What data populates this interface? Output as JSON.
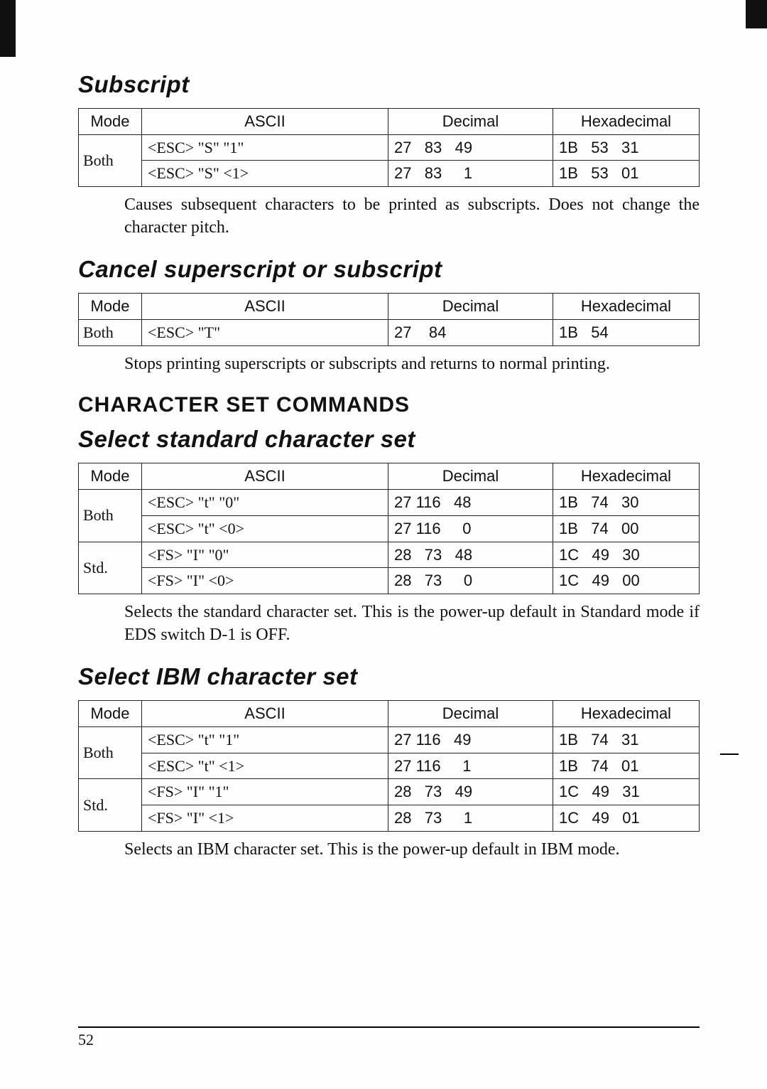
{
  "subscript": {
    "heading": "Subscript",
    "columns": [
      "Mode",
      "ASCII",
      "Decimal",
      "Hexadecimal"
    ],
    "rows": [
      {
        "mode": "Both",
        "modeRowspan": 2,
        "ascii": "<ESC>   \"S\"   \"1\"",
        "dec": "27   83   49",
        "hex": "1B   53   31"
      },
      {
        "ascii": "<ESC>   \"S\"   <1>",
        "dec": "27   83     1",
        "hex": "1B   53   01"
      }
    ],
    "desc": "Causes subsequent characters to be printed as subscripts. Does not change the character pitch."
  },
  "cancel": {
    "heading": "Cancel superscript or subscript",
    "columns": [
      "Mode",
      "ASCII",
      "Decimal",
      "Hexadecimal"
    ],
    "rows": [
      {
        "mode": "Both",
        "ascii": "<ESC>     \"T\"",
        "dec": "27    84",
        "hex": "1B   54"
      }
    ],
    "desc": "Stops printing superscripts or subscripts and returns to normal printing."
  },
  "charCmdHeading": "CHARACTER SET COMMANDS",
  "std": {
    "heading": "Select standard character set",
    "columns": [
      "Mode",
      "ASCII",
      "Decimal",
      "Hexadecimal"
    ],
    "rows": [
      {
        "mode": "Both",
        "modeRowspan": 2,
        "ascii": "<ESC>   \"t\"   \"0\"",
        "dec": "27 116   48",
        "hex": "1B   74   30"
      },
      {
        "ascii": "<ESC>   \"t\"   <0>",
        "dec": "27 116     0",
        "hex": "1B   74   00"
      },
      {
        "mode": "Std.",
        "modeRowspan": 2,
        "ascii": "<FS>      \"I\"   \"0\"",
        "dec": "28   73   48",
        "hex": "1C   49   30"
      },
      {
        "ascii": "<FS>      \"I\"   <0>",
        "dec": "28   73     0",
        "hex": "1C   49   00"
      }
    ],
    "desc": "Selects the standard character set. This is the power-up default in Standard mode if EDS switch D-1 is OFF."
  },
  "ibm": {
    "heading": "Select IBM character set",
    "columns": [
      "Mode",
      "ASCII",
      "Decimal",
      "Hexadecimal"
    ],
    "rows": [
      {
        "mode": "Both",
        "modeRowspan": 2,
        "ascii": "<ESC>   \"t\"   \"1\"",
        "dec": "27 116   49",
        "hex": "1B   74   31"
      },
      {
        "ascii": "<ESC>   \"t\"   <1>",
        "dec": "27 116     1",
        "hex": "1B   74   01"
      },
      {
        "mode": "Std.",
        "modeRowspan": 2,
        "ascii": "<FS>      \"I\"   \"1\"",
        "dec": "28   73   49",
        "hex": "1C   49   31"
      },
      {
        "ascii": "<FS>      \"I\"   <1>",
        "dec": "28   73     1",
        "hex": "1C   49   01"
      }
    ],
    "desc": "Selects an IBM character set. This is the power-up default in IBM mode."
  },
  "pageNumber": "52"
}
